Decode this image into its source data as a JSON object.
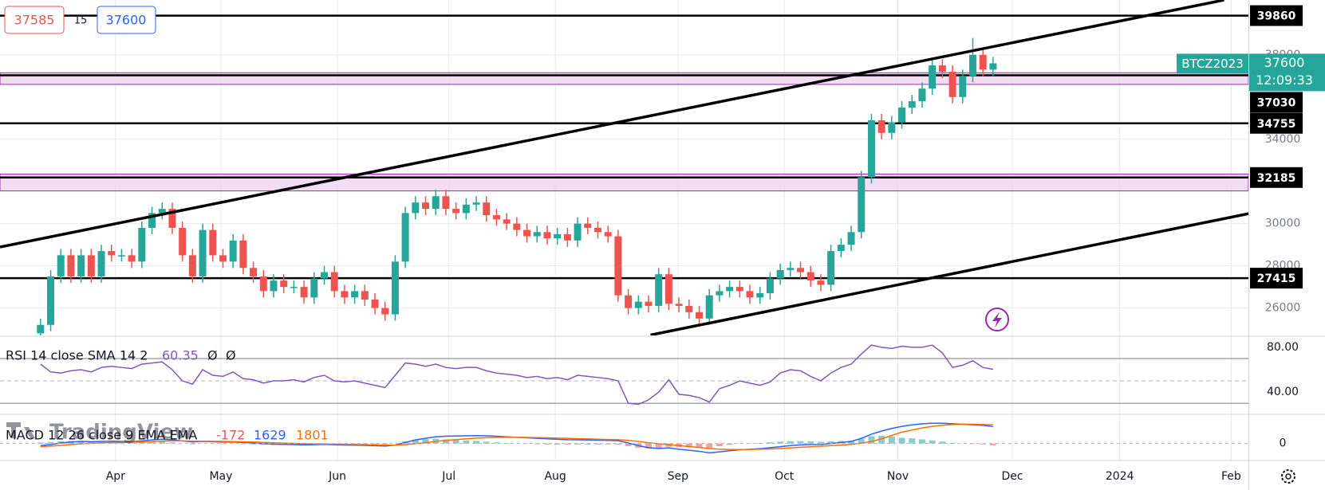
{
  "chart_data": [
    {
      "type": "candlestick",
      "header": {
        "bid": 37585,
        "spread": 15
      },
      "tag": {
        "symbol": "BTCZ2023",
        "countdown": "12:09:33"
      },
      "colors": {
        "up": "#26a69a",
        "down": "#ef5350"
      },
      "xlim": [
        -4,
        119.2
      ],
      "xticks": [
        {
          "value": 7.4,
          "label": "Apr"
        },
        {
          "value": 17.8,
          "label": "May"
        },
        {
          "value": 29.3,
          "label": "Jun"
        },
        {
          "value": 40.3,
          "label": "Jul"
        },
        {
          "value": 50.8,
          "label": "Aug"
        },
        {
          "value": 62.9,
          "label": "Sep"
        },
        {
          "value": 73.4,
          "label": "Oct"
        },
        {
          "value": 84.6,
          "label": "Nov"
        },
        {
          "value": 95.9,
          "label": "Dec"
        },
        {
          "value": 106.5,
          "label": "2024"
        },
        {
          "value": 117.5,
          "label": "Feb"
        }
      ],
      "ylim": [
        24700,
        40600
      ],
      "yticks": [
        26000,
        28000,
        30000,
        34000,
        38000
      ],
      "grid": true,
      "levels": [
        39860,
        37030,
        34755,
        32185,
        27415
      ],
      "zones": [
        [
          36600,
          37150
        ],
        [
          31550,
          32350
        ]
      ],
      "trendlines": [
        {
          "x": [
            -4,
            116.8
          ],
          "y": [
            28890,
            40600
          ]
        },
        {
          "x": [
            60.2,
            119.3
          ],
          "y": [
            24720,
            30480
          ]
        }
      ],
      "open": [
        24800,
        25200,
        27500,
        28500,
        27500,
        28500,
        27500,
        28700,
        28500,
        28500,
        28200,
        29800,
        30500,
        30700,
        29800,
        28500,
        27500,
        29700,
        28500,
        28200,
        29200,
        27900,
        27500,
        26800,
        27300,
        27000,
        27000,
        26500,
        27400,
        27700,
        26800,
        26500,
        26800,
        26400,
        26000,
        25700,
        28200,
        30500,
        31000,
        30700,
        31300,
        30700,
        30500,
        30900,
        31000,
        30400,
        30200,
        30000,
        29700,
        29400,
        29600,
        29300,
        29500,
        29200,
        30000,
        29800,
        29600,
        29400,
        26600,
        26000,
        26300,
        26100,
        27600,
        26200,
        26100,
        25800,
        25500,
        26600,
        26800,
        27000,
        26800,
        26500,
        26700,
        27400,
        27800,
        27900,
        27700,
        27300,
        27100,
        28700,
        29000,
        29600,
        32200,
        34900,
        34300,
        34800,
        35500,
        35800,
        36400,
        37500,
        37200,
        36000,
        37000,
        38000,
        37300
      ],
      "high": [
        25500,
        27800,
        28800,
        28800,
        28800,
        28800,
        29000,
        29000,
        28800,
        28800,
        30100,
        30800,
        31000,
        31000,
        30100,
        28800,
        30000,
        30000,
        28800,
        29500,
        29500,
        28200,
        27800,
        27600,
        27600,
        27300,
        27300,
        27700,
        28000,
        28000,
        27100,
        27100,
        27100,
        26700,
        26300,
        28500,
        30800,
        31300,
        31300,
        31600,
        31600,
        31000,
        31200,
        31300,
        31300,
        30700,
        30500,
        30300,
        30000,
        29900,
        29900,
        29800,
        29800,
        30300,
        30300,
        30100,
        29900,
        29700,
        26900,
        26600,
        26600,
        27900,
        27900,
        26500,
        26400,
        26100,
        26900,
        27100,
        27300,
        27300,
        27100,
        27000,
        27700,
        28100,
        28200,
        28200,
        28000,
        27600,
        29000,
        29300,
        29900,
        32500,
        35200,
        35200,
        35100,
        35800,
        36100,
        36700,
        37800,
        37800,
        37500,
        37300,
        38800,
        38300,
        37900
      ],
      "low": [
        24500,
        24900,
        27200,
        27200,
        27200,
        27200,
        27200,
        28200,
        28200,
        27900,
        27900,
        29500,
        30200,
        29500,
        28200,
        27200,
        27200,
        28200,
        27900,
        27900,
        27600,
        27200,
        26500,
        26500,
        26700,
        26700,
        26200,
        26200,
        27100,
        26500,
        26200,
        26200,
        26100,
        25700,
        25400,
        25400,
        27900,
        30200,
        30400,
        30400,
        30400,
        30200,
        30200,
        30600,
        30100,
        29900,
        29700,
        29400,
        29100,
        29100,
        29000,
        29000,
        28900,
        28900,
        29500,
        29300,
        29100,
        26300,
        25700,
        25700,
        25800,
        25800,
        25900,
        25800,
        25500,
        25200,
        25200,
        26300,
        26500,
        26500,
        26200,
        26200,
        26400,
        27100,
        27500,
        27400,
        27000,
        26800,
        26800,
        28400,
        28700,
        29300,
        31900,
        34000,
        34000,
        34500,
        35200,
        35500,
        36100,
        36900,
        35700,
        35700,
        36700,
        37000,
        37000
      ],
      "close": [
        25200,
        27500,
        28500,
        27500,
        28500,
        27500,
        28700,
        28500,
        28500,
        28200,
        29800,
        30500,
        30700,
        29800,
        28500,
        27500,
        29700,
        28500,
        28200,
        29200,
        27900,
        27500,
        26800,
        27300,
        27000,
        27000,
        26500,
        27400,
        27700,
        26800,
        26500,
        26800,
        26400,
        26000,
        25700,
        28200,
        30500,
        31000,
        30700,
        31300,
        30700,
        30500,
        30900,
        31000,
        30400,
        30200,
        30000,
        29700,
        29400,
        29600,
        29300,
        29500,
        29200,
        30000,
        29800,
        29600,
        29400,
        26600,
        26000,
        26300,
        26100,
        27600,
        26200,
        26100,
        25800,
        25500,
        26600,
        26800,
        27000,
        26800,
        26500,
        26700,
        27400,
        27800,
        27900,
        27700,
        27300,
        27100,
        28700,
        29000,
        29600,
        32200,
        34900,
        34300,
        34800,
        35500,
        35800,
        36400,
        37500,
        37200,
        36000,
        37000,
        38000,
        37300,
        37600
      ],
      "watermark": "TradingView"
    },
    {
      "type": "line",
      "title": "RSI 14 close SMA 14 2",
      "extras": [
        "Ø",
        "Ø"
      ],
      "color": "#7e57c2",
      "ylim": [
        20.8,
        88.5
      ],
      "yticks": [
        {
          "value": 80,
          "label": "80.00"
        },
        {
          "value": 40,
          "label": "40.00"
        }
      ],
      "levels": [
        70,
        50,
        30
      ],
      "values": [
        65,
        58,
        57,
        59,
        60,
        58,
        62,
        63,
        62,
        61,
        65,
        66,
        67,
        60,
        50,
        47,
        60,
        55,
        54,
        58,
        52,
        51,
        48,
        50,
        50,
        51,
        49,
        53,
        55,
        50,
        49,
        50,
        48,
        46,
        44,
        55,
        66,
        65,
        63,
        65,
        62,
        61,
        62,
        62,
        59,
        57,
        56,
        55,
        53,
        54,
        52,
        53,
        51,
        55,
        54,
        53,
        52,
        50,
        30,
        29,
        33,
        40,
        51,
        38,
        37,
        35,
        31,
        43,
        46,
        50,
        48,
        46,
        49,
        57,
        60,
        59,
        54,
        50,
        57,
        62,
        65,
        74,
        82,
        80,
        79,
        81,
        80,
        80,
        82,
        75,
        62,
        64,
        68,
        62,
        60.35
      ]
    },
    {
      "type": "macd",
      "title": "MACD 12 26 close 9 EMA EMA",
      "ylim": [
        -1560,
        2660
      ],
      "yticks": [
        0
      ],
      "series": [
        {
          "name": "Histogram",
          "colors": {
            "up": "#26a69a",
            "down": "#ef5350"
          },
          "values": [
            100,
            150,
            230,
            250,
            230,
            160,
            140,
            130,
            90,
            55,
            100,
            160,
            190,
            100,
            0,
            -80,
            -25,
            -35,
            -60,
            -40,
            -70,
            -95,
            -130,
            -135,
            -125,
            -115,
            -115,
            -75,
            -35,
            -60,
            -70,
            -65,
            -65,
            -75,
            -90,
            10,
            210,
            370,
            420,
            450,
            400,
            340,
            290,
            250,
            180,
            110,
            50,
            0,
            -40,
            -70,
            -100,
            -110,
            -120,
            -105,
            -100,
            -95,
            -90,
            -100,
            -250,
            -400,
            -480,
            -450,
            -310,
            -350,
            -360,
            -370,
            -420,
            -260,
            -130,
            -20,
            20,
            50,
            120,
            180,
            220,
            230,
            210,
            170,
            210,
            250,
            280,
            470,
            700,
            750,
            670,
            550,
            500,
            400,
            300,
            190,
            70,
            -10,
            -50,
            -80,
            -172
          ]
        },
        {
          "name": "MACD",
          "color": "#2962ff",
          "values": [
            -200,
            -100,
            50,
            150,
            200,
            180,
            200,
            220,
            200,
            180,
            250,
            350,
            420,
            350,
            250,
            150,
            200,
            180,
            140,
            150,
            100,
            50,
            -20,
            -60,
            -80,
            -100,
            -130,
            -110,
            -80,
            -120,
            -150,
            -160,
            -180,
            -210,
            -250,
            -150,
            100,
            350,
            500,
            650,
            700,
            720,
            740,
            760,
            740,
            700,
            650,
            600,
            550,
            500,
            450,
            410,
            370,
            360,
            340,
            320,
            300,
            270,
            50,
            -200,
            -400,
            -480,
            -420,
            -550,
            -650,
            -750,
            -900,
            -800,
            -700,
            -600,
            -550,
            -500,
            -400,
            -300,
            -200,
            -130,
            -100,
            -90,
            0,
            100,
            200,
            500,
            900,
            1200,
            1450,
            1650,
            1800,
            1900,
            1950,
            1950,
            1900,
            1850,
            1800,
            1750,
            1629
          ]
        },
        {
          "name": "Signal",
          "color": "#ff6d00",
          "values": [
            -300,
            -250,
            -180,
            -100,
            -30,
            20,
            60,
            90,
            110,
            125,
            150,
            190,
            230,
            250,
            250,
            230,
            225,
            215,
            200,
            190,
            170,
            145,
            110,
            75,
            45,
            15,
            -15,
            -35,
            -45,
            -60,
            -80,
            -95,
            -115,
            -135,
            -160,
            -160,
            -110,
            -20,
            80,
            200,
            300,
            380,
            450,
            510,
            560,
            590,
            600,
            600,
            590,
            570,
            550,
            520,
            490,
            465,
            440,
            415,
            390,
            370,
            300,
            200,
            80,
            -30,
            -110,
            -200,
            -290,
            -380,
            -480,
            -540,
            -570,
            -580,
            -570,
            -550,
            -520,
            -480,
            -420,
            -360,
            -310,
            -260,
            -210,
            -150,
            -80,
            30,
            200,
            450,
            780,
            1100,
            1300,
            1500,
            1650,
            1760,
            1830,
            1860,
            1850,
            1830,
            1801
          ]
        }
      ]
    }
  ]
}
